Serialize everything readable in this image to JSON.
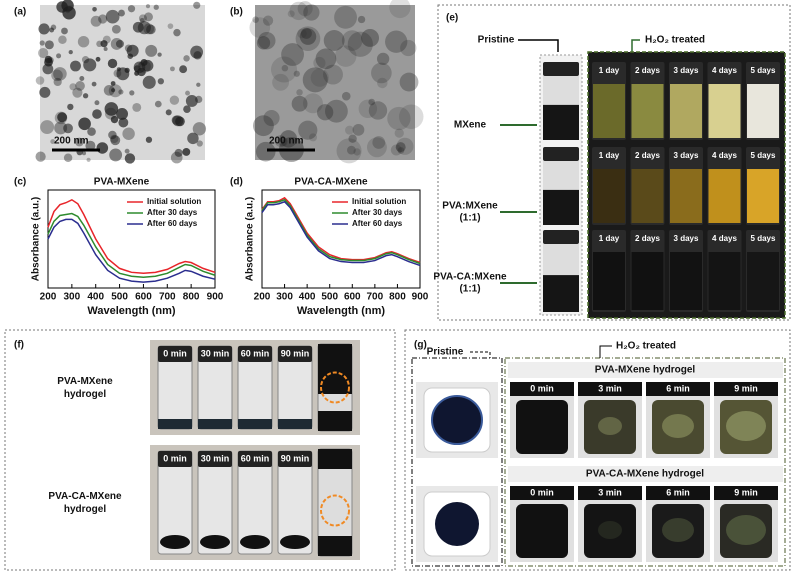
{
  "panel_labels": [
    "(a)",
    "(b)",
    "(c)",
    "(d)",
    "(e)",
    "(f)",
    "(g)"
  ],
  "tem": {
    "scale_a": "200 nm",
    "scale_b": "200 nm"
  },
  "chart_data": [
    {
      "type": "line",
      "title": "PVA-MXene",
      "x_label": "Wavelength (nm)",
      "y_label": "Absorbance (a.u.)",
      "x": [
        200,
        225,
        250,
        275,
        300,
        325,
        350,
        400,
        450,
        500,
        550,
        600,
        650,
        700,
        750,
        775,
        800,
        850,
        900
      ],
      "xlim": [
        200,
        900
      ],
      "xticks": [
        200,
        300,
        400,
        500,
        600,
        700,
        800,
        900
      ],
      "ylim": [
        0,
        1
      ],
      "legend": "upper right",
      "series": [
        {
          "name": "Initial solution",
          "color": "#e8252a",
          "values": [
            0.62,
            0.78,
            0.85,
            0.87,
            0.9,
            0.86,
            0.75,
            0.5,
            0.3,
            0.2,
            0.16,
            0.15,
            0.16,
            0.19,
            0.25,
            0.27,
            0.26,
            0.2,
            0.16
          ]
        },
        {
          "name": "After 30 days",
          "color": "#2e8b2e",
          "values": [
            0.55,
            0.68,
            0.74,
            0.75,
            0.76,
            0.73,
            0.64,
            0.42,
            0.24,
            0.15,
            0.12,
            0.11,
            0.12,
            0.15,
            0.21,
            0.24,
            0.23,
            0.17,
            0.13
          ]
        },
        {
          "name": "After 60 days",
          "color": "#2b2e8f",
          "values": [
            0.5,
            0.62,
            0.68,
            0.7,
            0.7,
            0.66,
            0.56,
            0.34,
            0.18,
            0.1,
            0.07,
            0.06,
            0.07,
            0.1,
            0.15,
            0.18,
            0.17,
            0.12,
            0.09
          ]
        }
      ]
    },
    {
      "type": "line",
      "title": "PVA-CA-MXene",
      "x_label": "Wavelength (nm)",
      "y_label": "Absorbance (a.u.)",
      "x": [
        200,
        225,
        250,
        275,
        300,
        325,
        350,
        400,
        450,
        500,
        550,
        600,
        650,
        700,
        750,
        775,
        800,
        850,
        900
      ],
      "xlim": [
        200,
        900
      ],
      "xticks": [
        200,
        300,
        400,
        500,
        600,
        700,
        800,
        900
      ],
      "ylim": [
        0,
        1
      ],
      "legend": "upper right",
      "series": [
        {
          "name": "Initial solution",
          "color": "#e8252a",
          "values": [
            0.8,
            0.88,
            0.88,
            0.89,
            0.92,
            0.86,
            0.76,
            0.56,
            0.42,
            0.34,
            0.3,
            0.29,
            0.29,
            0.31,
            0.36,
            0.37,
            0.35,
            0.3,
            0.26
          ]
        },
        {
          "name": "After 30 days",
          "color": "#2e8b2e",
          "values": [
            0.79,
            0.87,
            0.87,
            0.88,
            0.9,
            0.84,
            0.74,
            0.54,
            0.4,
            0.32,
            0.29,
            0.28,
            0.28,
            0.3,
            0.35,
            0.36,
            0.34,
            0.29,
            0.25
          ]
        },
        {
          "name": "After 60 days",
          "color": "#2b2e8f",
          "values": [
            0.77,
            0.85,
            0.85,
            0.86,
            0.88,
            0.82,
            0.72,
            0.52,
            0.38,
            0.3,
            0.27,
            0.26,
            0.26,
            0.28,
            0.33,
            0.34,
            0.32,
            0.27,
            0.23
          ]
        }
      ]
    }
  ],
  "panel_e": {
    "pristine": "Pristine",
    "treated": "H₂O₂ treated",
    "rows": [
      {
        "label_lines": [
          "MXene"
        ],
        "days": [
          "1 day",
          "2 days",
          "3 days",
          "4 days",
          "5 days"
        ]
      },
      {
        "label_lines": [
          "PVA:MXene",
          "(1:1)"
        ],
        "days": [
          "1 day",
          "2 days",
          "3 days",
          "4 days",
          "5 days"
        ]
      },
      {
        "label_lines": [
          "PVA-CA:MXene",
          "(1:1)"
        ],
        "days": [
          "1 day",
          "2 days",
          "3 days",
          "4 days",
          "5 days"
        ]
      }
    ]
  },
  "panel_f": {
    "rows": [
      {
        "label_lines": [
          "PVA-MXene",
          "hydrogel"
        ],
        "times": [
          "0 min",
          "30 min",
          "60 min",
          "90 min"
        ]
      },
      {
        "label_lines": [
          "PVA-CA-MXene",
          "hydrogel"
        ],
        "times": [
          "0 min",
          "30 min",
          "60 min",
          "90 min"
        ]
      }
    ]
  },
  "panel_g": {
    "pristine": "Pristine",
    "treated": "H₂O₂ treated",
    "rows": [
      {
        "title": "PVA-MXene hydrogel",
        "times": [
          "0 min",
          "3 min",
          "6 min",
          "9 min"
        ]
      },
      {
        "title": "PVA-CA-MXene hydrogel",
        "times": [
          "0 min",
          "3 min",
          "6 min",
          "9 min"
        ]
      }
    ]
  }
}
